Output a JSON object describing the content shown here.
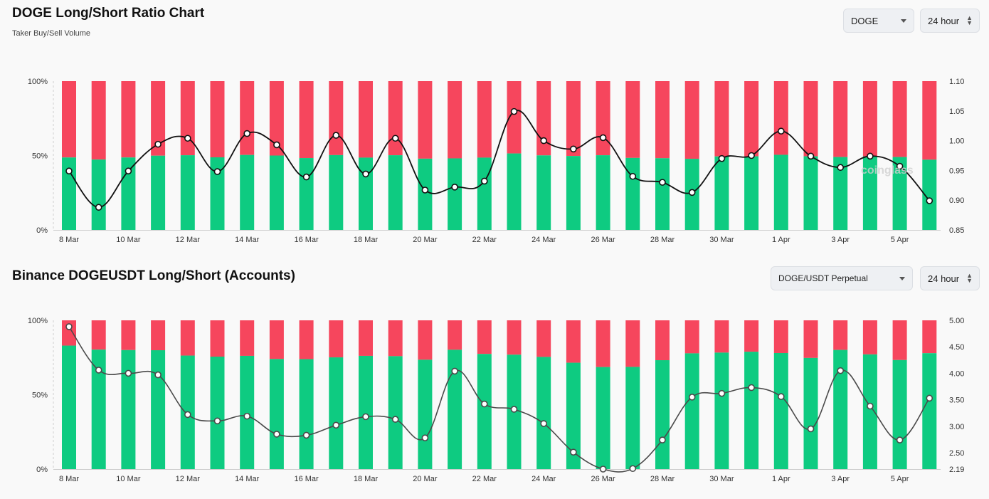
{
  "colors": {
    "long": "#0ecb81",
    "short": "#f6465d",
    "line1": "#111111",
    "line2": "#4a4a4a"
  },
  "chart1": {
    "title": "DOGE Long/Short Ratio Chart",
    "subtitle": "Taker Buy/Sell Volume",
    "coin_select": "DOGE",
    "interval_select": "24 hour",
    "watermark": "coinglass"
  },
  "chart2": {
    "title": "Binance DOGEUSDT Long/Short (Accounts)",
    "pair_select": "DOGE/USDT Perpetual",
    "interval_select": "24 hour"
  },
  "chart_data": [
    {
      "type": "bar",
      "title": "DOGE Long/Short Ratio Chart",
      "categories": [
        "8 Mar",
        "9 Mar",
        "10 Mar",
        "11 Mar",
        "12 Mar",
        "13 Mar",
        "14 Mar",
        "15 Mar",
        "16 Mar",
        "17 Mar",
        "18 Mar",
        "19 Mar",
        "20 Mar",
        "21 Mar",
        "22 Mar",
        "23 Mar",
        "24 Mar",
        "25 Mar",
        "26 Mar",
        "27 Mar",
        "28 Mar",
        "29 Mar",
        "30 Mar",
        "31 Mar",
        "1 Apr",
        "2 Apr",
        "3 Apr",
        "4 Apr",
        "5 Apr",
        "6 Apr"
      ],
      "x_tick_labels": [
        "8 Mar",
        "10 Mar",
        "12 Mar",
        "14 Mar",
        "16 Mar",
        "18 Mar",
        "20 Mar",
        "22 Mar",
        "24 Mar",
        "26 Mar",
        "28 Mar",
        "30 Mar",
        "1 Apr",
        "3 Apr",
        "5 Apr"
      ],
      "series": [
        {
          "values": [
            48.7,
            47.3,
            48.7,
            49.9,
            50.2,
            48.8,
            50.4,
            50.0,
            48.3,
            50.3,
            48.6,
            50.2,
            47.9,
            48.1,
            48.6,
            51.4,
            50.1,
            49.7,
            50.2,
            48.4,
            48.2,
            47.8,
            49.4,
            49.5,
            50.5,
            49.5,
            49.0,
            49.5,
            49.0,
            47.2
          ]
        },
        {
          "values": [
            51.3,
            52.7,
            51.3,
            50.1,
            49.8,
            51.2,
            49.6,
            50.0,
            51.7,
            49.7,
            51.4,
            49.8,
            52.1,
            51.9,
            51.4,
            48.6,
            49.9,
            50.3,
            49.8,
            51.6,
            51.8,
            52.2,
            50.6,
            50.5,
            49.5,
            50.5,
            51.0,
            50.5,
            51.0,
            52.8
          ]
        },
        {
          "type": "line",
          "axis": "right",
          "values": [
            0.949,
            0.888,
            0.949,
            0.994,
            1.004,
            0.948,
            1.012,
            0.993,
            0.939,
            1.009,
            0.944,
            1.004,
            0.917,
            0.922,
            0.932,
            1.049,
            1.0,
            0.986,
            1.005,
            0.94,
            0.93,
            0.913,
            0.97,
            0.975,
            1.016,
            0.974,
            0.955,
            0.974,
            0.957,
            0.899
          ]
        }
      ],
      "ylim": [
        0,
        100
      ],
      "y_ticks": [
        "0%",
        "50%",
        "100%"
      ],
      "y2lim": [
        0.85,
        1.1
      ],
      "y2_ticks": [
        "0.85",
        "0.90",
        "0.95",
        "1.00",
        "1.05",
        "1.10"
      ]
    },
    {
      "type": "bar",
      "title": "Binance DOGEUSDT Long/Short (Accounts)",
      "categories": [
        "8 Mar",
        "9 Mar",
        "10 Mar",
        "11 Mar",
        "12 Mar",
        "13 Mar",
        "14 Mar",
        "15 Mar",
        "16 Mar",
        "17 Mar",
        "18 Mar",
        "19 Mar",
        "20 Mar",
        "21 Mar",
        "22 Mar",
        "23 Mar",
        "24 Mar",
        "25 Mar",
        "26 Mar",
        "27 Mar",
        "28 Mar",
        "29 Mar",
        "30 Mar",
        "31 Mar",
        "1 Apr",
        "2 Apr",
        "3 Apr",
        "4 Apr",
        "5 Apr",
        "6 Apr"
      ],
      "x_tick_labels": [
        "8 Mar",
        "10 Mar",
        "12 Mar",
        "14 Mar",
        "16 Mar",
        "18 Mar",
        "20 Mar",
        "22 Mar",
        "24 Mar",
        "26 Mar",
        "28 Mar",
        "30 Mar",
        "1 Apr",
        "3 Apr",
        "5 Apr"
      ],
      "series": [
        {
          "values": [
            83.0,
            80.3,
            80.0,
            79.9,
            76.3,
            75.6,
            76.1,
            74.0,
            73.9,
            75.1,
            76.1,
            75.9,
            73.5,
            80.2,
            77.4,
            76.9,
            75.4,
            71.5,
            68.6,
            68.7,
            73.2,
            77.8,
            78.3,
            78.9,
            78.0,
            74.7,
            80.1,
            77.1,
            73.3,
            77.9
          ]
        },
        {
          "values": [
            17.0,
            19.7,
            20.0,
            20.1,
            23.7,
            24.4,
            23.9,
            26.0,
            26.1,
            24.9,
            23.9,
            24.1,
            26.5,
            19.8,
            22.6,
            23.1,
            24.6,
            28.5,
            31.4,
            31.3,
            26.8,
            22.2,
            21.7,
            21.1,
            22.0,
            25.3,
            19.9,
            22.9,
            26.7,
            22.1
          ]
        },
        {
          "type": "line",
          "axis": "right",
          "values": [
            4.88,
            4.06,
            4.0,
            3.97,
            3.22,
            3.1,
            3.19,
            2.85,
            2.83,
            3.02,
            3.18,
            3.13,
            2.78,
            4.04,
            3.42,
            3.32,
            3.05,
            2.51,
            2.19,
            2.2,
            2.74,
            3.55,
            3.62,
            3.73,
            3.56,
            2.95,
            4.05,
            3.38,
            2.74,
            3.53
          ]
        }
      ],
      "ylim": [
        0,
        100
      ],
      "y_ticks": [
        "0%",
        "50%",
        "100%"
      ],
      "y2lim": [
        2.19,
        5.0
      ],
      "y2_ticks": [
        "2.19",
        "2.50",
        "3.00",
        "3.50",
        "4.00",
        "4.50",
        "5.00"
      ]
    }
  ]
}
